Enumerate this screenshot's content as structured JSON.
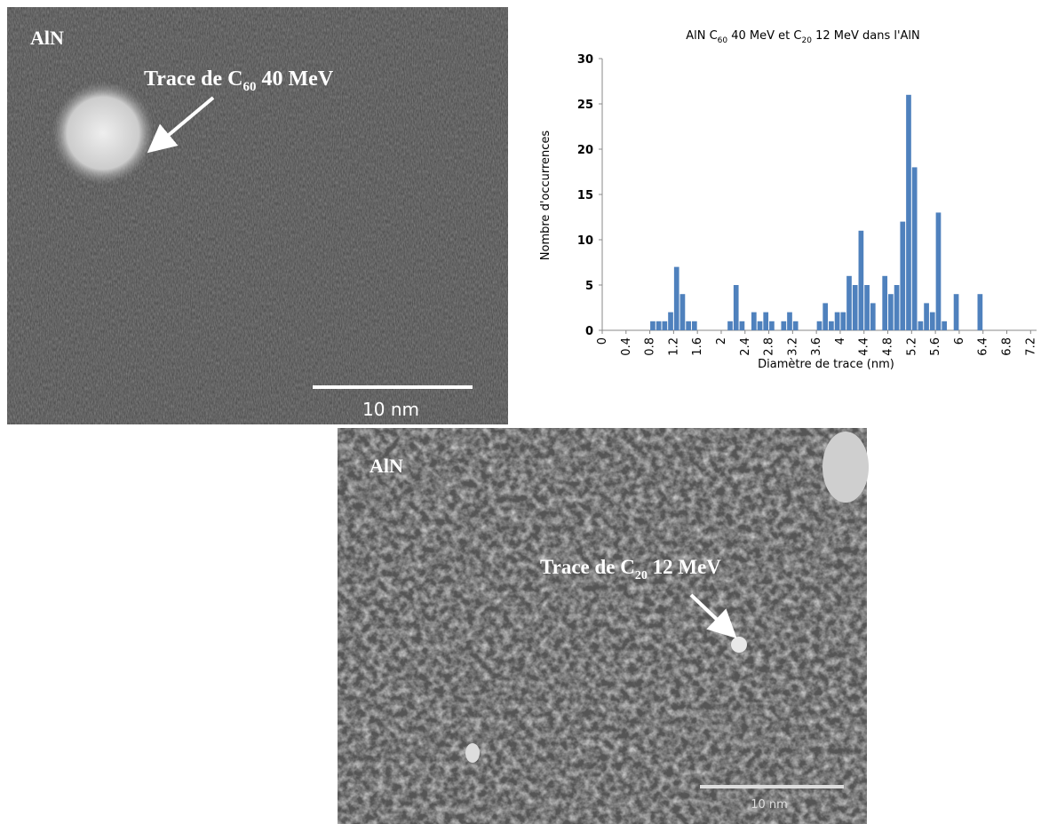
{
  "images": [
    {
      "material": "AlN",
      "annotation": [
        "Trace de C",
        "60",
        " 40 MeV"
      ],
      "scale": "10 nm"
    },
    {
      "material": "AlN",
      "annotation": [
        "Trace de C",
        "20",
        " 12 MeV"
      ],
      "scale": "10 nm"
    }
  ],
  "chart_data": {
    "type": "histogram",
    "title": [
      "AlN C",
      "60",
      " 40 MeV et C",
      "20",
      " 12 MeV dans l'AlN"
    ],
    "x_label": "Diamètre de trace (nm)",
    "y_label": "Nombre d'occurrences",
    "color": "#4f81bd",
    "bins": [
      0,
      0.1,
      0.2,
      0.3,
      0.4,
      0.5,
      0.6,
      0.7,
      0.8,
      0.9,
      1,
      1.1,
      1.2,
      1.3,
      1.4,
      1.5,
      1.6,
      1.7,
      1.8,
      1.9,
      2,
      2.1,
      2.2,
      2.3,
      2.4,
      2.5,
      2.6,
      2.7,
      2.8,
      2.9,
      3,
      3.1,
      3.2,
      3.3,
      3.4,
      3.5,
      3.6,
      3.7,
      3.8,
      3.9,
      4,
      4.1,
      4.2,
      4.3,
      4.4,
      4.5,
      4.6,
      4.7,
      4.8,
      4.9,
      5,
      5.1,
      5.2,
      5.3,
      5.4,
      5.5,
      5.6,
      5.7,
      5.8,
      5.9,
      6,
      6.1,
      6.2,
      6.3,
      6.4,
      6.5,
      6.6,
      6.7,
      6.8,
      6.9,
      7,
      7.1,
      7.2,
      7.3
    ],
    "values": [
      0,
      0,
      0,
      0,
      0,
      0,
      0,
      0,
      1,
      1,
      1,
      2,
      7,
      4,
      1,
      1,
      0,
      0,
      0,
      0,
      0,
      1,
      5,
      1,
      0,
      2,
      1,
      2,
      1,
      0,
      1,
      2,
      1,
      0,
      0,
      0,
      1,
      3,
      1,
      2,
      2,
      6,
      5,
      11,
      5,
      3,
      0,
      6,
      4,
      5,
      12,
      26,
      18,
      1,
      3,
      2,
      13,
      1,
      0,
      4,
      0,
      0,
      0,
      4,
      0,
      0,
      0,
      0,
      0,
      0,
      0,
      0,
      0
    ],
    "xlim": [
      0,
      7.3
    ],
    "ylim": [
      0,
      30
    ],
    "xticks": [
      0,
      0.4,
      0.8,
      1.2,
      1.6,
      2,
      2.4,
      2.8,
      3.2,
      3.6,
      4,
      4.4,
      4.8,
      5.2,
      5.6,
      6,
      6.4,
      6.8,
      7.2
    ],
    "yticks": [
      0,
      5,
      10,
      15,
      20,
      25,
      30
    ]
  }
}
